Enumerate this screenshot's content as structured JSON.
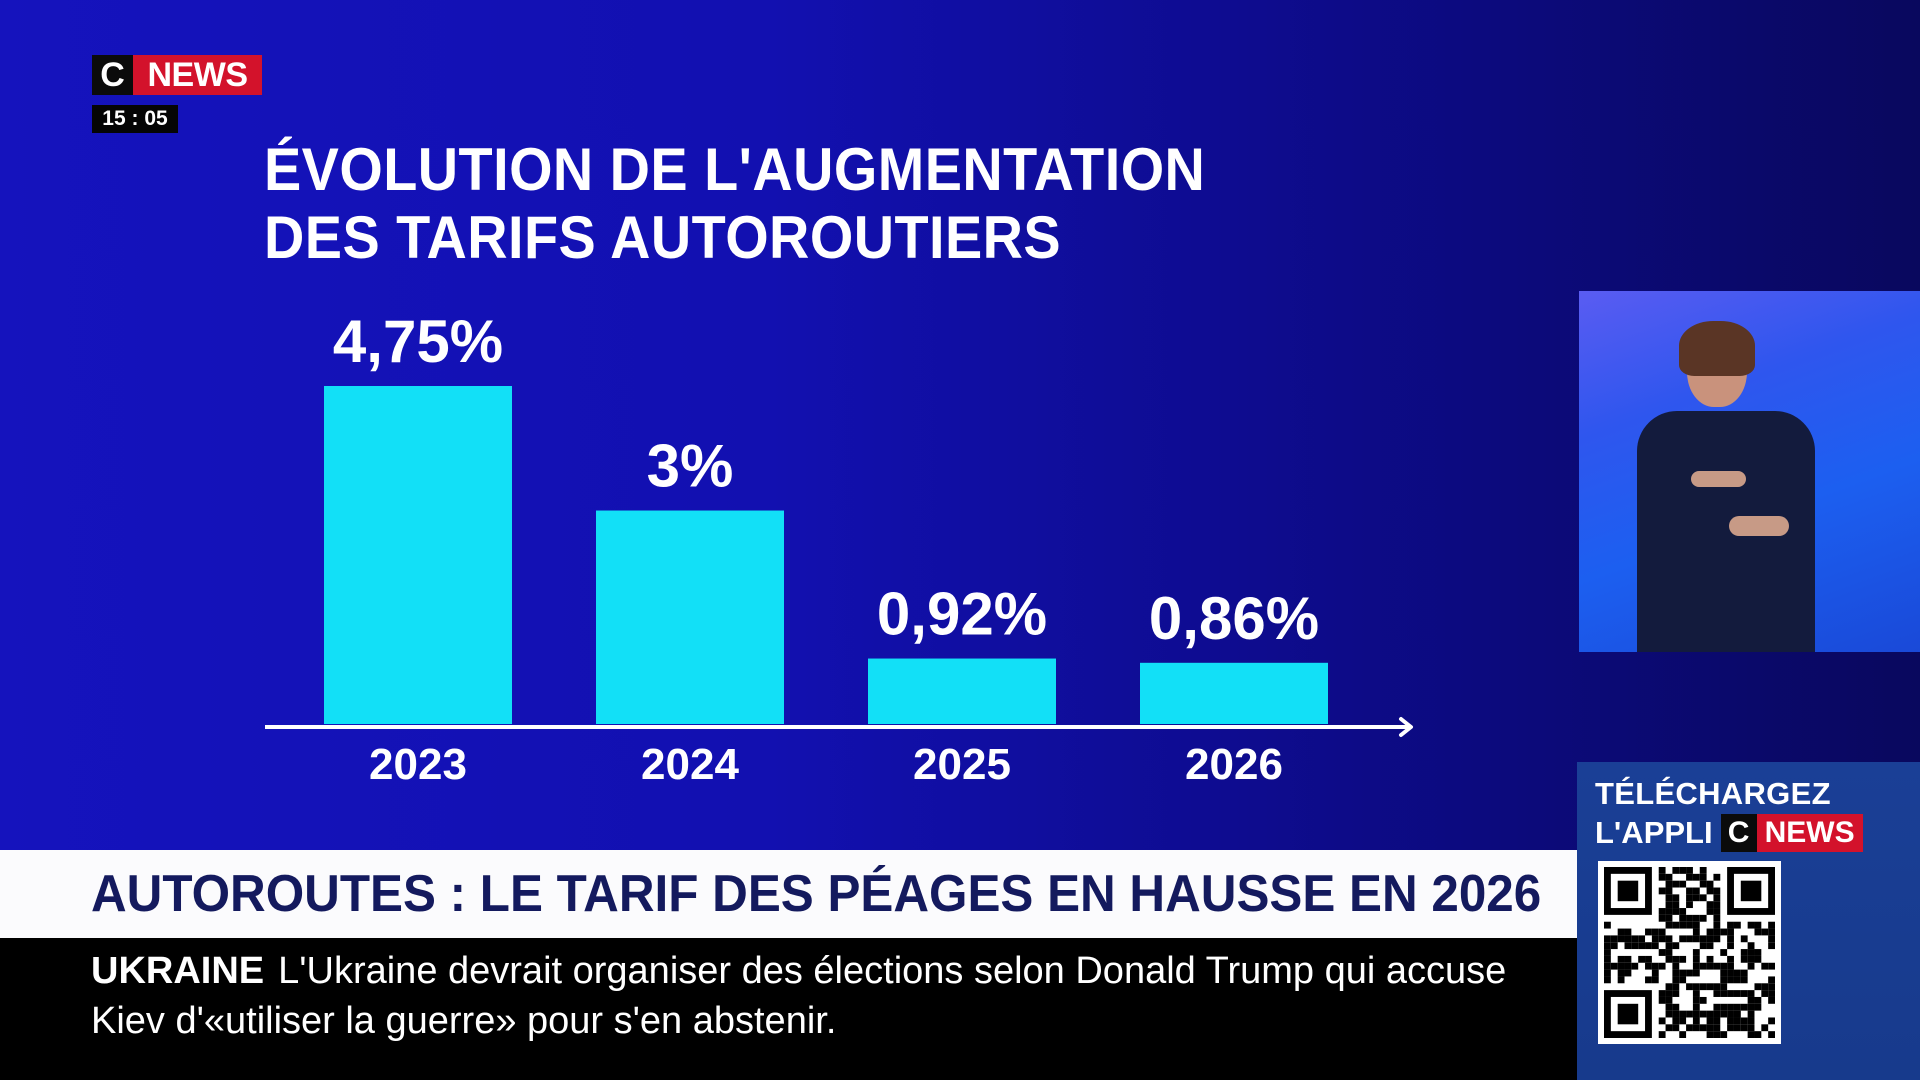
{
  "channel": {
    "logo_c": "C",
    "logo_news": "NEWS",
    "clock": "15 : 05",
    "brand_red": "#d3122b"
  },
  "graphic": {
    "title_line1": "ÉVOLUTION DE L'AUGMENTATION",
    "title_line2": "DES TARIFS AUTOROUTIERS"
  },
  "chart_data": {
    "type": "bar",
    "title": "ÉVOLUTION DE L'AUGMENTATION DES TARIFS AUTOROUTIERS",
    "categories": [
      "2023",
      "2024",
      "2025",
      "2026"
    ],
    "values": [
      4.75,
      3,
      0.92,
      0.86
    ],
    "data_labels": [
      "4,75%",
      "3%",
      "0,92%",
      "0,86%"
    ],
    "unit": "%",
    "xlabel": "",
    "ylabel": "",
    "ylim": [
      0,
      4.75
    ],
    "grid": false,
    "legend": "none",
    "bar_color": "#12e0f7",
    "axis_arrow": true
  },
  "headline": {
    "text": "AUTOROUTES : LE TARIF DES PÉAGES EN HAUSSE EN 2026"
  },
  "ticker": {
    "tag": "UKRAINE",
    "text": "L'Ukraine devrait organiser des élections selon Donald Trump qui accuse Kiev d'«utiliser la guerre» pour s'en abstenir."
  },
  "app_promo": {
    "line1": "TÉLÉCHARGEZ",
    "line2": "L'APPLI",
    "logo_c": "C",
    "logo_news": "NEWS",
    "qr_icon": "qr-code"
  },
  "signer": {
    "description": "sign-language-interpreter"
  }
}
